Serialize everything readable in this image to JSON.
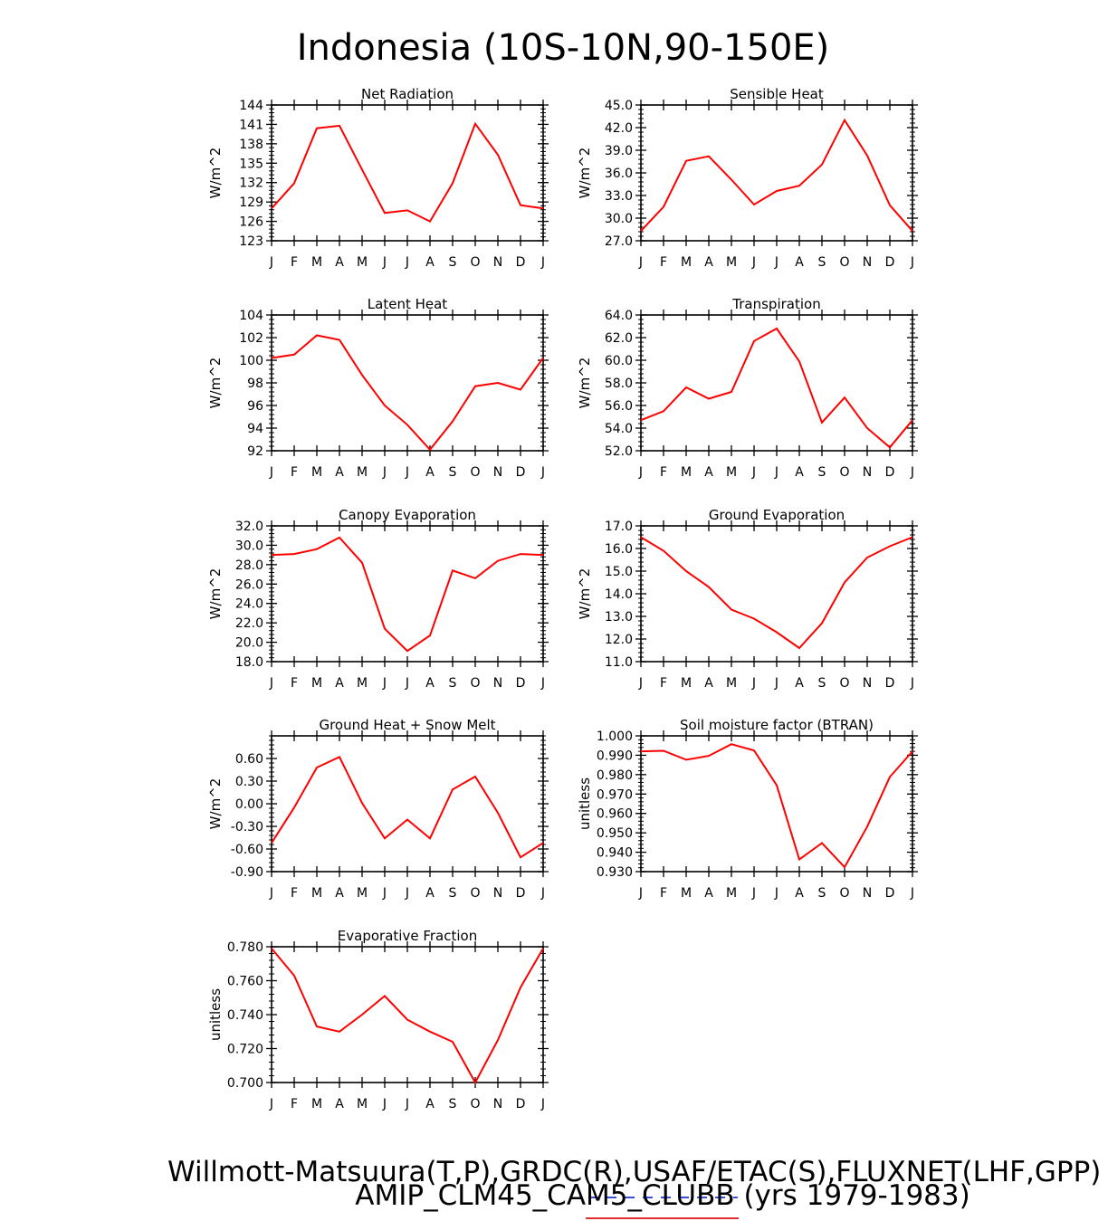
{
  "page": {
    "title": "Indonesia (10S-10N,90-150E)",
    "footer_line1": "Willmott-Matsuura(T,P),GRDC(R),USAF/ETAC(S),FLUXNET(LHF,GPP)",
    "footer_line2": "AMIP_CLM45_CAM5_CLUBB (yrs 1979-1983)",
    "colors": {
      "line": "#ff0000",
      "underline_obs": "#3a4fd8",
      "underline_model": "#e03030"
    }
  },
  "chart_data": [
    {
      "type": "line",
      "title": "Net Radiation",
      "ylabel": "W/m^2",
      "categories": [
        "J",
        "F",
        "M",
        "A",
        "M",
        "J",
        "J",
        "A",
        "S",
        "O",
        "N",
        "D",
        "J"
      ],
      "ylim": [
        123,
        144
      ],
      "yticks": [
        "123",
        "126",
        "129",
        "132",
        "135",
        "138",
        "141",
        "144"
      ],
      "values": [
        128.0,
        131.9,
        140.4,
        140.8,
        134.0,
        127.3,
        127.7,
        126.0,
        131.9,
        141.1,
        136.3,
        128.5,
        128.0
      ]
    },
    {
      "type": "line",
      "title": "Sensible Heat",
      "ylabel": "W/m^2",
      "categories": [
        "J",
        "F",
        "M",
        "A",
        "M",
        "J",
        "J",
        "A",
        "S",
        "O",
        "N",
        "D",
        "J"
      ],
      "ylim": [
        27.0,
        45.0
      ],
      "yticks": [
        "27.0",
        "30.0",
        "33.0",
        "36.0",
        "39.0",
        "42.0",
        "45.0"
      ],
      "values": [
        28.3,
        31.5,
        37.6,
        38.2,
        35.1,
        31.8,
        33.6,
        34.3,
        37.1,
        43.0,
        38.3,
        31.7,
        28.3
      ]
    },
    {
      "type": "line",
      "title": "Latent Heat",
      "ylabel": "W/m^2",
      "categories": [
        "J",
        "F",
        "M",
        "A",
        "M",
        "J",
        "J",
        "A",
        "S",
        "O",
        "N",
        "D",
        "J"
      ],
      "ylim": [
        92,
        104
      ],
      "yticks": [
        "92",
        "94",
        "96",
        "98",
        "100",
        "102",
        "104"
      ],
      "values": [
        100.2,
        100.5,
        102.2,
        101.8,
        98.7,
        96.0,
        94.3,
        92.1,
        94.6,
        97.7,
        98.0,
        97.4,
        100.2
      ]
    },
    {
      "type": "line",
      "title": "Transpiration",
      "ylabel": "W/m^2",
      "categories": [
        "J",
        "F",
        "M",
        "A",
        "M",
        "J",
        "J",
        "A",
        "S",
        "O",
        "N",
        "D",
        "J"
      ],
      "ylim": [
        52.0,
        64.0
      ],
      "yticks": [
        "52.0",
        "54.0",
        "56.0",
        "58.0",
        "60.0",
        "62.0",
        "64.0"
      ],
      "values": [
        54.7,
        55.5,
        57.6,
        56.6,
        57.2,
        61.7,
        62.8,
        59.9,
        54.5,
        56.7,
        54.0,
        52.3,
        54.7
      ]
    },
    {
      "type": "line",
      "title": "Canopy Evaporation",
      "ylabel": "W/m^2",
      "categories": [
        "J",
        "F",
        "M",
        "A",
        "M",
        "J",
        "J",
        "A",
        "S",
        "O",
        "N",
        "D",
        "J"
      ],
      "ylim": [
        18.0,
        32.0
      ],
      "yticks": [
        "18.0",
        "20.0",
        "22.0",
        "24.0",
        "26.0",
        "28.0",
        "30.0",
        "32.0"
      ],
      "values": [
        29.0,
        29.1,
        29.6,
        30.8,
        28.2,
        21.4,
        19.1,
        20.7,
        27.4,
        26.6,
        28.4,
        29.1,
        29.0
      ]
    },
    {
      "type": "line",
      "title": "Ground Evaporation",
      "ylabel": "W/m^2",
      "categories": [
        "J",
        "F",
        "M",
        "A",
        "M",
        "J",
        "J",
        "A",
        "S",
        "O",
        "N",
        "D",
        "J"
      ],
      "ylim": [
        11.0,
        17.0
      ],
      "yticks": [
        "11.0",
        "12.0",
        "13.0",
        "14.0",
        "15.0",
        "16.0",
        "17.0"
      ],
      "values": [
        16.5,
        15.9,
        15.0,
        14.3,
        13.3,
        12.9,
        12.3,
        11.6,
        12.7,
        14.5,
        15.6,
        16.1,
        16.5
      ]
    },
    {
      "type": "line",
      "title": "Ground Heat + Snow Melt",
      "ylabel": "W/m^2",
      "categories": [
        "J",
        "F",
        "M",
        "A",
        "M",
        "J",
        "J",
        "A",
        "S",
        "O",
        "N",
        "D",
        "J"
      ],
      "ylim": [
        -0.9,
        0.9
      ],
      "yticks": [
        "-0.90",
        "-0.60",
        "-0.30",
        "0.00",
        "0.30",
        "0.60"
      ],
      "ytick_values": [
        -0.9,
        -0.6,
        -0.3,
        0.0,
        0.3,
        0.6
      ],
      "values": [
        -0.52,
        -0.05,
        0.48,
        0.62,
        0.01,
        -0.46,
        -0.21,
        -0.46,
        0.19,
        0.36,
        -0.12,
        -0.71,
        -0.52
      ]
    },
    {
      "type": "line",
      "title": "Soil moisture factor (BTRAN)",
      "ylabel": "unitless",
      "categories": [
        "J",
        "F",
        "M",
        "A",
        "M",
        "J",
        "J",
        "A",
        "S",
        "O",
        "N",
        "D",
        "J"
      ],
      "ylim": [
        0.93,
        1.0
      ],
      "yticks": [
        "0.930",
        "0.940",
        "0.950",
        "0.960",
        "0.970",
        "0.980",
        "0.990",
        "1.000"
      ],
      "values": [
        0.992,
        0.9923,
        0.9877,
        0.9897,
        0.9957,
        0.9925,
        0.9745,
        0.9363,
        0.9447,
        0.9323,
        0.9532,
        0.9788,
        0.992
      ]
    },
    {
      "type": "line",
      "title": "Evaporative Fraction",
      "ylabel": "unitless",
      "categories": [
        "J",
        "F",
        "M",
        "A",
        "M",
        "J",
        "J",
        "A",
        "S",
        "O",
        "N",
        "D",
        "J"
      ],
      "ylim": [
        0.7,
        0.78
      ],
      "yticks": [
        "0.700",
        "0.720",
        "0.740",
        "0.760",
        "0.780"
      ],
      "values": [
        0.779,
        0.763,
        0.733,
        0.73,
        0.74,
        0.751,
        0.737,
        0.73,
        0.724,
        0.7,
        0.725,
        0.756,
        0.779
      ]
    }
  ]
}
